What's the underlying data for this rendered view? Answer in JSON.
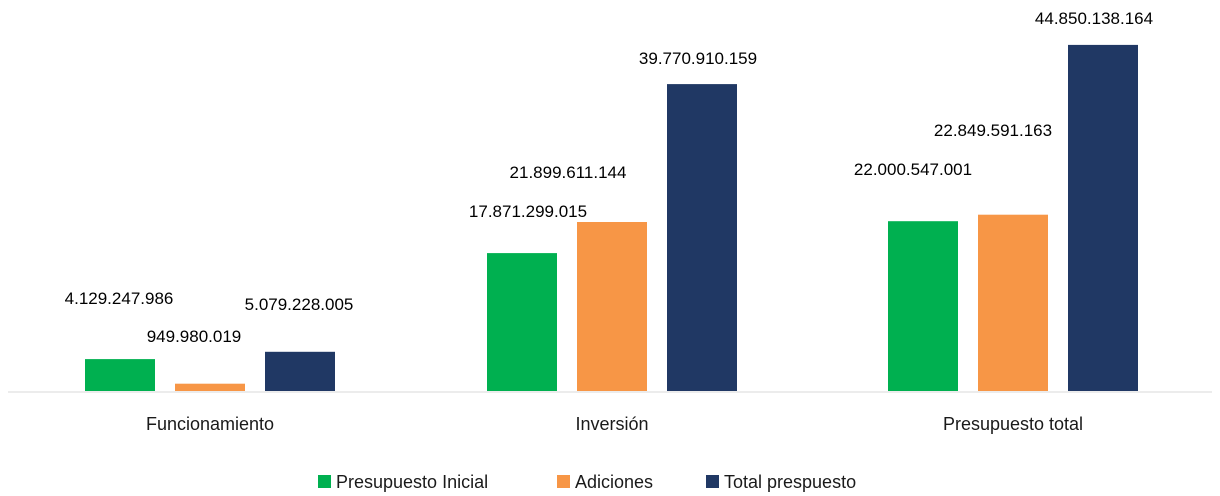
{
  "chart_data": {
    "type": "bar",
    "categories": [
      "Funcionamiento",
      "Inversión",
      "Presupuesto total"
    ],
    "series": [
      {
        "name": "Presupuesto Inicial",
        "color": "#00b050",
        "values": [
          4129247986,
          17871299015,
          22000547001
        ],
        "labels": [
          "4.129.247.986",
          "17.871.299.015",
          "22.000.547.001"
        ]
      },
      {
        "name": "Adiciones",
        "color": "#f79646",
        "values": [
          949980019,
          21899611144,
          22849591163
        ],
        "labels": [
          "949.980.019",
          "21.899.611.144",
          "22.849.591.163"
        ]
      },
      {
        "name": "Total prespuesto",
        "color": "#203864",
        "values": [
          5079228005,
          39770910159,
          44850138164
        ],
        "labels": [
          "5.079.228.005",
          "39.770.910.159",
          "44.850.138.164"
        ]
      }
    ],
    "title": "",
    "xlabel": "",
    "ylabel": "",
    "ylim": [
      0,
      46000000000
    ],
    "grid": false,
    "legend": "bottom-center"
  }
}
